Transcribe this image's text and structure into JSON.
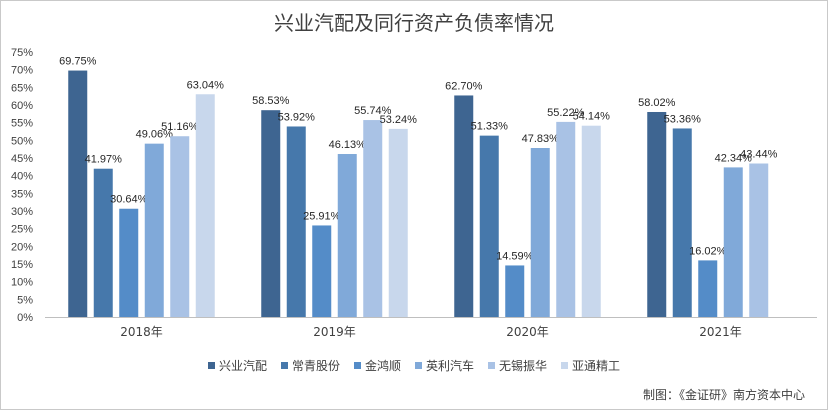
{
  "chart_data": {
    "type": "bar",
    "title": "兴业汽配及同行资产负债率情况",
    "categories": [
      "2018年",
      "2019年",
      "2020年",
      "2021年"
    ],
    "series": [
      {
        "name": "兴业汽配",
        "color": "#3e6591",
        "values": [
          69.75,
          58.53,
          62.7,
          58.02
        ],
        "labels": [
          "69.75%",
          "58.53%",
          "62.70%",
          "58.02%"
        ]
      },
      {
        "name": "常青股份",
        "color": "#4678ab",
        "values": [
          41.97,
          53.92,
          51.33,
          53.36
        ],
        "labels": [
          "41.97%",
          "53.92%",
          "51.33%",
          "53.36%"
        ]
      },
      {
        "name": "金鸿顺",
        "color": "#548cc8",
        "values": [
          30.64,
          25.91,
          14.59,
          16.02
        ],
        "labels": [
          "30.64%",
          "25.91%",
          "14.59%",
          "16.02%"
        ]
      },
      {
        "name": "英利汽车",
        "color": "#80a9d9",
        "values": [
          49.06,
          46.13,
          47.83,
          42.34
        ],
        "labels": [
          "49.06%",
          "46.13%",
          "47.83%",
          "42.34%"
        ]
      },
      {
        "name": "无锡振华",
        "color": "#a9c2e5",
        "values": [
          51.16,
          55.74,
          55.22,
          43.44
        ],
        "labels": [
          "51.16%",
          "55.74%",
          "55.22%",
          "43.44%"
        ]
      },
      {
        "name": "亚通精工",
        "color": "#c8d7ec",
        "values": [
          63.04,
          53.24,
          54.14,
          null
        ],
        "labels": [
          "63.04%",
          "53.24%",
          "54.14%",
          ""
        ]
      }
    ],
    "yticks": [
      "0%",
      "5%",
      "10%",
      "15%",
      "20%",
      "25%",
      "30%",
      "35%",
      "40%",
      "45%",
      "50%",
      "55%",
      "60%",
      "65%",
      "70%",
      "75%"
    ],
    "ylim": [
      0,
      75
    ],
    "grid": false,
    "legend_position": "bottom"
  },
  "footer": "制图：《金证研》南方资本中心"
}
